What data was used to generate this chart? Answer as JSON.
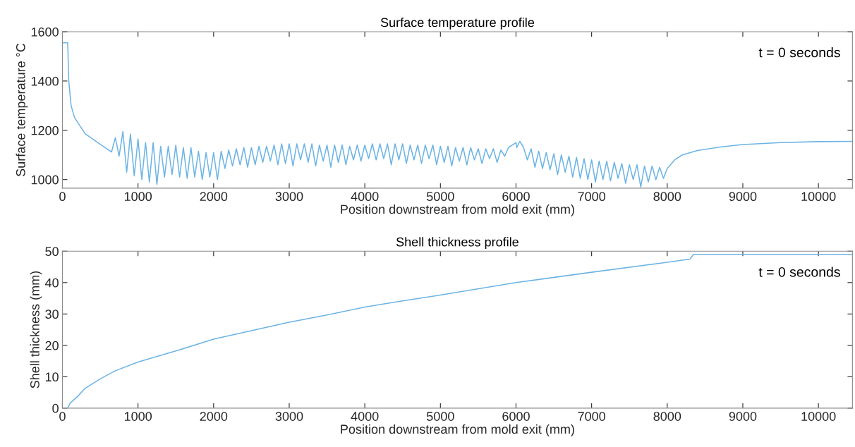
{
  "chart_data": [
    {
      "type": "line",
      "title": "Surface temperature profile",
      "xlabel": "Position downstream from mold exit (mm)",
      "ylabel": "Surface temperature °C",
      "annotations": [
        "t = 0 seconds"
      ],
      "xlim": [
        0,
        10450
      ],
      "ylim": [
        965,
        1600
      ],
      "xticks": [
        0,
        1000,
        2000,
        3000,
        4000,
        5000,
        6000,
        7000,
        8000,
        9000,
        10000
      ],
      "yticks": [
        1000,
        1200,
        1400,
        1600
      ],
      "grid": false,
      "series": [
        {
          "color": "#6cb4e4",
          "x": [
            0,
            70,
            84,
            115,
            160,
            300,
            500,
            650,
            700,
            750,
            800,
            850,
            900,
            950,
            1000,
            1050,
            1100,
            1150,
            1200,
            1250,
            1300,
            1350,
            1400,
            1450,
            1500,
            1550,
            1600,
            1650,
            1700,
            1750,
            1800,
            1850,
            1900,
            1950,
            2000,
            2050,
            2100,
            2150,
            2200,
            2250,
            2300,
            2350,
            2400,
            2450,
            2500,
            2550,
            2600,
            2650,
            2700,
            2750,
            2800,
            2850,
            2900,
            2950,
            3000,
            3050,
            3100,
            3150,
            3200,
            3250,
            3300,
            3350,
            3400,
            3450,
            3500,
            3550,
            3600,
            3650,
            3700,
            3750,
            3800,
            3850,
            3900,
            3950,
            4000,
            4050,
            4100,
            4150,
            4200,
            4250,
            4300,
            4350,
            4400,
            4450,
            4500,
            4550,
            4600,
            4650,
            4700,
            4750,
            4800,
            4850,
            4900,
            4950,
            5000,
            5050,
            5100,
            5150,
            5200,
            5250,
            5300,
            5350,
            5400,
            5450,
            5500,
            5550,
            5600,
            5650,
            5700,
            5750,
            5800,
            5850,
            5900,
            6000,
            6010,
            6050,
            6100,
            6150,
            6200,
            6250,
            6300,
            6350,
            6400,
            6450,
            6500,
            6550,
            6600,
            6650,
            6700,
            6750,
            6800,
            6850,
            6900,
            6950,
            7000,
            7050,
            7100,
            7150,
            7200,
            7250,
            7300,
            7350,
            7400,
            7450,
            7500,
            7550,
            7600,
            7650,
            7700,
            7750,
            7800,
            7850,
            7900,
            7950,
            8000,
            8100,
            8200,
            8400,
            8700,
            9000,
            9500,
            10000,
            10450
          ],
          "values": [
            1555,
            1555,
            1400,
            1300,
            1252,
            1186,
            1143,
            1112,
            1170,
            1095,
            1195,
            1030,
            1185,
            1015,
            1165,
            1000,
            1150,
            990,
            1150,
            980,
            1135,
            1010,
            1135,
            1020,
            1140,
            1010,
            1130,
            1005,
            1130,
            1010,
            1115,
            1000,
            1110,
            1010,
            1110,
            1000,
            1115,
            1045,
            1120,
            1055,
            1125,
            1060,
            1130,
            1050,
            1130,
            1060,
            1135,
            1070,
            1135,
            1075,
            1140,
            1060,
            1145,
            1065,
            1145,
            1055,
            1145,
            1080,
            1145,
            1070,
            1145,
            1055,
            1140,
            1075,
            1140,
            1050,
            1140,
            1070,
            1140,
            1060,
            1135,
            1080,
            1140,
            1075,
            1140,
            1085,
            1145,
            1080,
            1145,
            1085,
            1145,
            1060,
            1145,
            1080,
            1145,
            1065,
            1140,
            1080,
            1140,
            1065,
            1140,
            1085,
            1140,
            1060,
            1135,
            1070,
            1135,
            1055,
            1130,
            1075,
            1130,
            1060,
            1130,
            1080,
            1125,
            1065,
            1125,
            1085,
            1125,
            1070,
            1120,
            1095,
            1130,
            1150,
            1130,
            1155,
            1130,
            1080,
            1125,
            1050,
            1115,
            1045,
            1110,
            1040,
            1105,
            1020,
            1100,
            1030,
            1095,
            1010,
            1090,
            1005,
            1085,
            1000,
            1080,
            990,
            1075,
            1000,
            1075,
            995,
            1070,
            1005,
            1065,
            985,
            1060,
            1000,
            1060,
            970,
            1055,
            990,
            1055,
            1000,
            1050,
            1005,
            1045,
            1080,
            1100,
            1118,
            1132,
            1142,
            1150,
            1154,
            1155
          ]
        }
      ]
    },
    {
      "type": "line",
      "title": "Shell thickness profile",
      "xlabel": "Position downstream from mold exit (mm)",
      "ylabel": "Shell thickness (mm)",
      "annotations": [
        "t = 0 seconds"
      ],
      "xlim": [
        0,
        10450
      ],
      "ylim": [
        0,
        50
      ],
      "xticks": [
        0,
        1000,
        2000,
        3000,
        4000,
        5000,
        6000,
        7000,
        8000,
        9000,
        10000
      ],
      "yticks": [
        0,
        10,
        20,
        30,
        40,
        50
      ],
      "grid": false,
      "series": [
        {
          "color": "#6cb4e4",
          "x": [
            0,
            70,
            100,
            200,
            300,
            500,
            700,
            1000,
            1500,
            2000,
            2500,
            3000,
            3500,
            4000,
            4500,
            5000,
            6000,
            7000,
            8000,
            8300,
            8350,
            10450
          ],
          "values": [
            0,
            0,
            1.5,
            3.7,
            6.3,
            9.3,
            11.9,
            14.7,
            18.2,
            22,
            24.7,
            27.4,
            29.7,
            32.2,
            34.2,
            36,
            40,
            43.3,
            46.5,
            47.5,
            49,
            49
          ]
        }
      ]
    }
  ]
}
